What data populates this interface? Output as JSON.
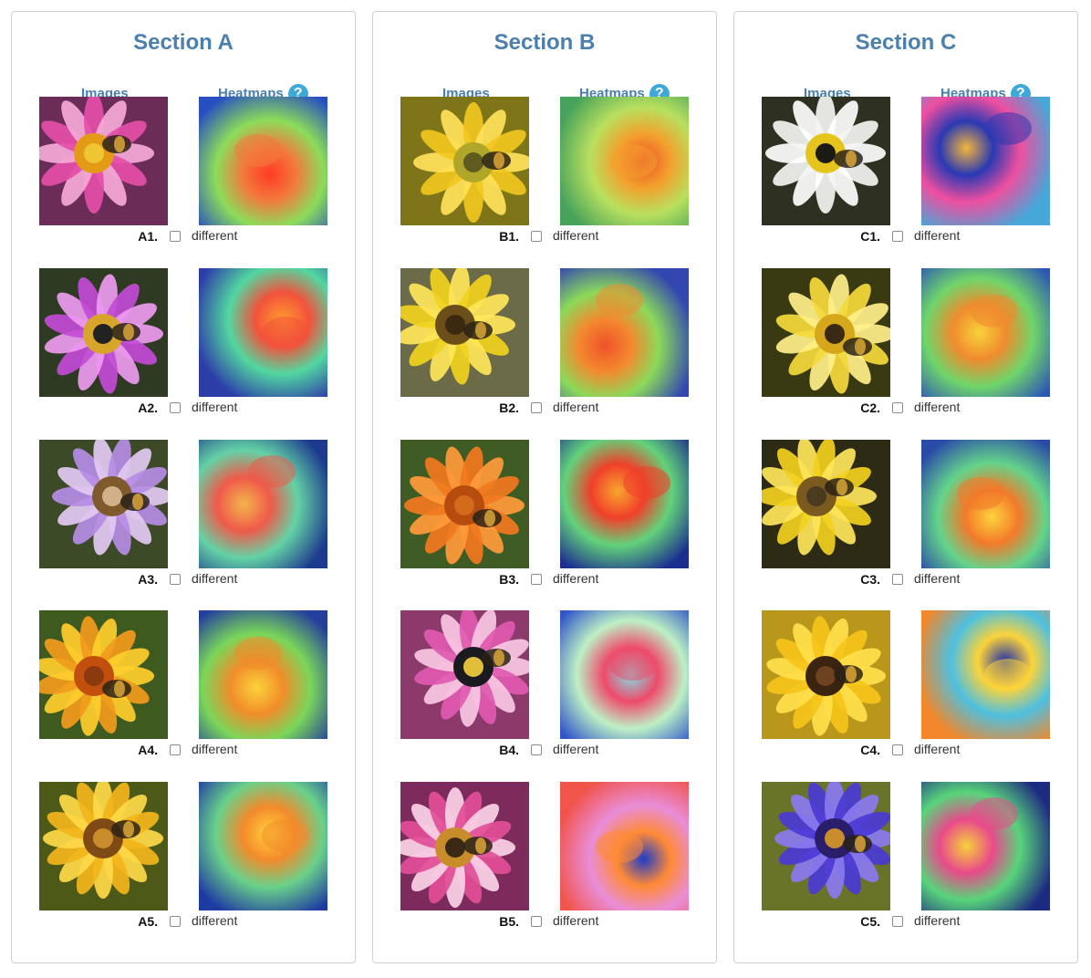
{
  "sections": [
    {
      "title": "Section A",
      "images_label": "Images",
      "heatmaps_label": "Heatmaps",
      "rows": [
        {
          "label": "A1.",
          "checkbox_label": "different",
          "image": {
            "bg": "#6b2c58",
            "c1": "#e54ea8",
            "c2": "#f6a9d6",
            "center": "#e39b15",
            "center2": "#f0c534"
          },
          "heat": {
            "bg": "#284fbf",
            "c1": "#f27a3d",
            "c2": "#ff3a24",
            "c3": "#8cdc5a"
          }
        },
        {
          "label": "A2.",
          "checkbox_label": "different",
          "image": {
            "bg": "#2e3b22",
            "c1": "#c34bd8",
            "c2": "#ee9bf0",
            "center": "#d6a52a",
            "center2": "#222"
          },
          "heat": {
            "bg": "#2d3ea8",
            "c1": "#f2523b",
            "c2": "#ff9b2e",
            "c3": "#52d7a0"
          }
        },
        {
          "label": "A3.",
          "checkbox_label": "different",
          "image": {
            "bg": "#3c4a28",
            "c1": "#b68ce5",
            "c2": "#e3c9f2",
            "center": "#7e5a2d",
            "center2": "#d2b18a"
          },
          "heat": {
            "bg": "#1d3b8e",
            "c1": "#ef5a4a",
            "c2": "#f3b54c",
            "c3": "#64d2a5"
          }
        },
        {
          "label": "A4.",
          "checkbox_label": "different",
          "image": {
            "bg": "#3f5a1f",
            "c1": "#f29a1c",
            "c2": "#ffce2d",
            "center": "#c24f0e",
            "center2": "#8a3a0e"
          },
          "heat": {
            "bg": "#243f9b",
            "c1": "#f08d2a",
            "c2": "#fbd23b",
            "c3": "#7ad65a"
          }
        },
        {
          "label": "A5.",
          "checkbox_label": "different",
          "image": {
            "bg": "#4d5a17",
            "c1": "#f3b51b",
            "c2": "#ffd94a",
            "center": "#7f4a14",
            "center2": "#c98d2e"
          },
          "heat": {
            "bg": "#1f3ba2",
            "c1": "#f38a2b",
            "c2": "#ffd33a",
            "c3": "#69d18a"
          }
        }
      ]
    },
    {
      "title": "Section B",
      "images_label": "Images",
      "heatmaps_label": "Heatmaps",
      "rows": [
        {
          "label": "B1.",
          "checkbox_label": "different",
          "image": {
            "bg": "#7e7418",
            "c1": "#f1c71e",
            "c2": "#ffe15a",
            "center": "#b0a62a",
            "center2": "#5e5a20"
          },
          "heat": {
            "bg": "#47a25b",
            "c1": "#f3a02d",
            "c2": "#ef4f2a",
            "c3": "#b8e05e"
          }
        },
        {
          "label": "B2.",
          "checkbox_label": "different",
          "image": {
            "bg": "#6c6b47",
            "c1": "#f1d21e",
            "c2": "#ffe65a",
            "center": "#6b4f1b",
            "center2": "#3b2a10"
          },
          "heat": {
            "bg": "#3447b0",
            "c1": "#f38a2e",
            "c2": "#f0512a",
            "c3": "#8bd95a"
          }
        },
        {
          "label": "B3.",
          "checkbox_label": "different",
          "image": {
            "bg": "#3f5c25",
            "c1": "#f2781e",
            "c2": "#ff9a3a",
            "center": "#b64d0e",
            "center2": "#d46b1a"
          },
          "heat": {
            "bg": "#1c2f8f",
            "c1": "#f0402a",
            "c2": "#f7a62c",
            "c3": "#62d27a"
          }
        },
        {
          "label": "B4.",
          "checkbox_label": "different",
          "image": {
            "bg": "#8b3a6b",
            "c1": "#e059b0",
            "c2": "#f8c8e3",
            "center": "#1b1a1e",
            "center2": "#e0c03a"
          },
          "heat": {
            "bg": "#2f55c9",
            "c1": "#ef4a6a",
            "c2": "#7fe1e6",
            "c3": "#bdf0c4"
          }
        },
        {
          "label": "B5.",
          "checkbox_label": "different",
          "image": {
            "bg": "#7d2a5d",
            "c1": "#e24e98",
            "c2": "#fbd2e6",
            "center": "#c98c2a",
            "center2": "#3a2a15"
          },
          "heat": {
            "bg": "#f1544b",
            "c1": "#ff8a35",
            "c2": "#1f3cc8",
            "c3": "#e98dd8"
          }
        }
      ]
    },
    {
      "title": "Section C",
      "images_label": "Images",
      "heatmaps_label": "Heatmaps",
      "rows": [
        {
          "label": "C1.",
          "checkbox_label": "different",
          "image": {
            "bg": "#2e3121",
            "c1": "#f4f4f2",
            "c2": "#ffffff",
            "center": "#e6c41e",
            "center2": "#1b1a15"
          },
          "heat": {
            "bg": "#46a7d8",
            "c1": "#2a39b3",
            "c2": "#f3b53b",
            "c3": "#ee4fa0"
          }
        },
        {
          "label": "C2.",
          "checkbox_label": "different",
          "image": {
            "bg": "#3a3a12",
            "c1": "#f5d93a",
            "c2": "#fff08a",
            "center": "#d6a61b",
            "center2": "#3a2a13"
          },
          "heat": {
            "bg": "#2d55b5",
            "c1": "#f08b2d",
            "c2": "#f7d23a",
            "c3": "#6fd56a"
          }
        },
        {
          "label": "C3.",
          "checkbox_label": "different",
          "image": {
            "bg": "#2d2b16",
            "c1": "#f2d01e",
            "c2": "#ffe65a",
            "center": "#7a5a1e",
            "center2": "#4a3a20"
          },
          "heat": {
            "bg": "#2a4aa8",
            "c1": "#f27a2a",
            "c2": "#fdd33a",
            "c3": "#63d48a"
          }
        },
        {
          "label": "C4.",
          "checkbox_label": "different",
          "image": {
            "bg": "#b9971a",
            "c1": "#f5c41a",
            "c2": "#ffe04a",
            "center": "#3a230f",
            "center2": "#6d4220"
          },
          "heat": {
            "bg": "#f2872b",
            "c1": "#fbd33a",
            "c2": "#1f2faa",
            "c3": "#4ec0e0"
          }
        },
        {
          "label": "C5.",
          "checkbox_label": "different",
          "image": {
            "bg": "#6a7428",
            "c1": "#4b3ad5",
            "c2": "#8a7af0",
            "center": "#2a1e6a",
            "center2": "#c98d2e"
          },
          "heat": {
            "bg": "#1d2a82",
            "c1": "#e84a8a",
            "c2": "#f7d23a",
            "c3": "#58d47a"
          }
        }
      ]
    }
  ]
}
